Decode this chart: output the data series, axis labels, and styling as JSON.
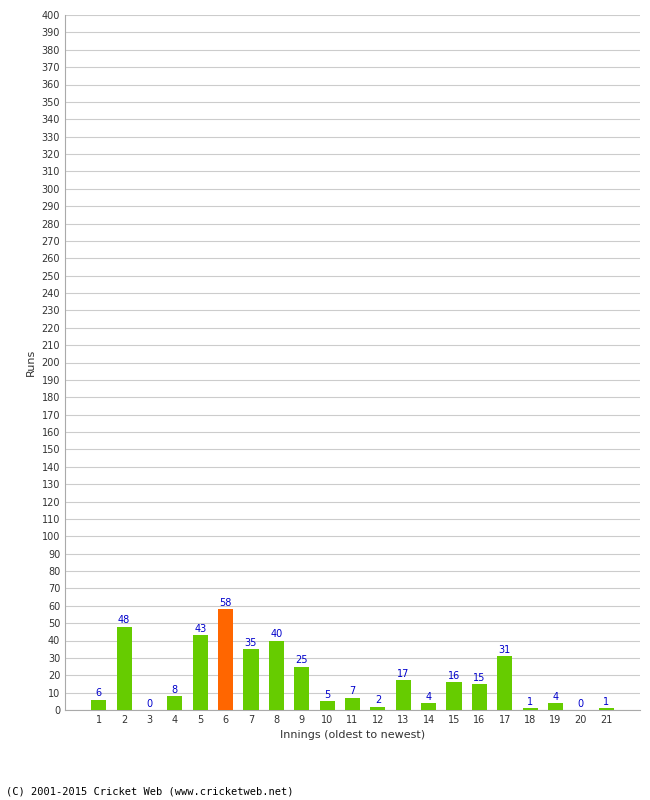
{
  "xlabel": "Innings (oldest to newest)",
  "ylabel": "Runs",
  "categories": [
    1,
    2,
    3,
    4,
    5,
    6,
    7,
    8,
    9,
    10,
    11,
    12,
    13,
    14,
    15,
    16,
    17,
    18,
    19,
    20,
    21
  ],
  "values": [
    6,
    48,
    0,
    8,
    43,
    58,
    35,
    40,
    25,
    5,
    7,
    2,
    17,
    4,
    16,
    15,
    31,
    1,
    4,
    0,
    1
  ],
  "bar_colors": [
    "#66cc00",
    "#66cc00",
    "#66cc00",
    "#66cc00",
    "#66cc00",
    "#ff6600",
    "#66cc00",
    "#66cc00",
    "#66cc00",
    "#66cc00",
    "#66cc00",
    "#66cc00",
    "#66cc00",
    "#66cc00",
    "#66cc00",
    "#66cc00",
    "#66cc00",
    "#66cc00",
    "#66cc00",
    "#66cc00",
    "#66cc00"
  ],
  "label_color": "#0000cc",
  "ylim": [
    0,
    400
  ],
  "ytick_step": 10,
  "background_color": "#ffffff",
  "grid_color": "#cccccc",
  "footer": "(C) 2001-2015 Cricket Web (www.cricketweb.net)"
}
